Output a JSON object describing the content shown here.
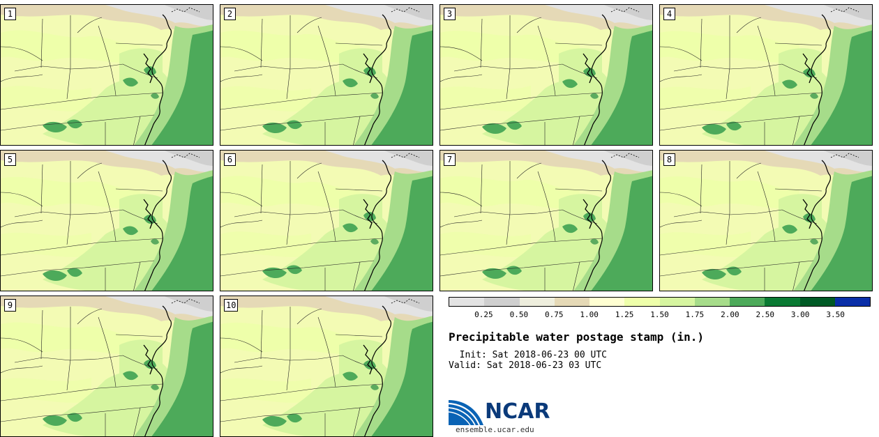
{
  "panels": [
    {
      "label": "1"
    },
    {
      "label": "2"
    },
    {
      "label": "3"
    },
    {
      "label": "4"
    },
    {
      "label": "5"
    },
    {
      "label": "6"
    },
    {
      "label": "7"
    },
    {
      "label": "8"
    },
    {
      "label": "9"
    },
    {
      "label": "10"
    }
  ],
  "colorbar": {
    "ticks": [
      "0.25",
      "0.50",
      "0.75",
      "1.00",
      "1.25",
      "1.50",
      "1.75",
      "2.00",
      "2.50",
      "3.00",
      "3.50"
    ],
    "colors": [
      "#e3e3e3",
      "#cfcfcf",
      "#eeeedd",
      "#e5d9b6",
      "#ffffd2",
      "#eeffaa",
      "#d6f5a0",
      "#a6dc8a",
      "#4daa5a",
      "#0a7a33",
      "#005a25",
      "#0a2fa8"
    ]
  },
  "title": "Precipitable water postage stamp (in.)",
  "init": "Init: Sat 2018-06-23 00 UTC",
  "valid": "Valid: Sat 2018-06-23 03 UTC",
  "logo": {
    "name": "NCAR",
    "site": "ensemble.ucar.edu"
  }
}
